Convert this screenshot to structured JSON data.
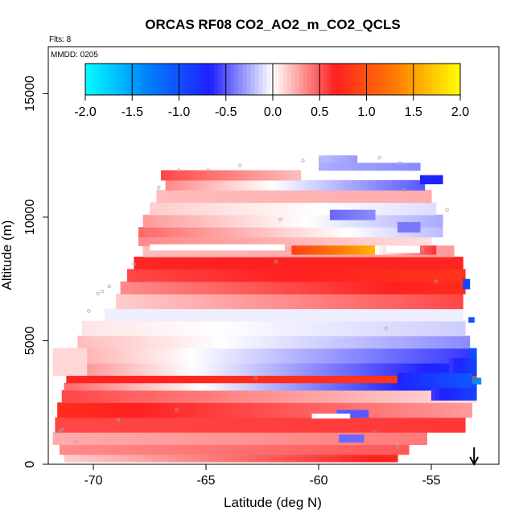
{
  "chart_data": {
    "type": "heatmap",
    "title": "ORCAS RF08 CO2_AO2_m_CO2_QCLS",
    "annotations": {
      "flights": "Flts: 8",
      "date": "MMDD: 0205"
    },
    "xlabel": "Latitude (deg N)",
    "ylabel": "Altitude (m)",
    "xlim": [
      -72,
      -52
    ],
    "ylim": [
      0,
      16900
    ],
    "xticks": [
      -70,
      -65,
      -60,
      -55
    ],
    "xtick_labels": [
      "-70",
      "-65",
      "-60",
      "-55"
    ],
    "yticks": [
      0,
      5000,
      10000,
      15000
    ],
    "ytick_labels": [
      "0",
      "5000",
      "10000",
      "15000"
    ],
    "colorbar": {
      "range": [
        -2.0,
        2.0
      ],
      "ticks": [
        -2.0,
        -1.5,
        -1.0,
        -0.5,
        0.0,
        0.5,
        1.0,
        1.5,
        2.0
      ],
      "tick_labels": [
        "-2.0",
        "-1.5",
        "-1.0",
        "-0.5",
        "0.0",
        "0.5",
        "1.0",
        "1.5",
        "2.0"
      ],
      "colors": [
        "#00ffff",
        "#0080ff",
        "#2020ff",
        "#ffffff",
        "#ff2020",
        "#ff8000",
        "#ffff00"
      ]
    },
    "arrow": {
      "lat": -53.1,
      "direction": "down"
    },
    "bands": [
      {
        "alt_low": 100,
        "alt_high": 400,
        "lat_start": -71.3,
        "lat_end": -56.5,
        "v_start": 0.15,
        "v_end": 0.7
      },
      {
        "alt_low": 400,
        "alt_high": 800,
        "lat_start": -71.5,
        "lat_end": -56.0,
        "v_start": 0.35,
        "v_end": 0.5
      },
      {
        "alt_low": 800,
        "alt_high": 1300,
        "lat_start": -71.8,
        "lat_end": -55.2,
        "v_start": 0.25,
        "v_end": 0.4
      },
      {
        "alt_low": 1300,
        "alt_high": 1900,
        "lat_start": -71.7,
        "lat_end": -53.5,
        "v_start": 0.55,
        "v_end": 0.6
      },
      {
        "alt_low": 1900,
        "alt_high": 2500,
        "lat_start": -71.6,
        "lat_end": -53.2,
        "v_start": 0.75,
        "v_end": 0.3
      },
      {
        "alt_low": 2500,
        "alt_high": 3000,
        "lat_start": -71.4,
        "lat_end": -53.0,
        "v_start": 0.55,
        "v_end": 0.1
      },
      {
        "alt_low": 3000,
        "alt_high": 3300,
        "lat_start": -71.3,
        "lat_end": -53.0,
        "v_start": 0.45,
        "v_end": -0.9
      },
      {
        "alt_low": 3300,
        "alt_high": 3600,
        "lat_start": -71.2,
        "lat_end": -53.0,
        "v_start": 0.65,
        "v_end": 0.85
      },
      {
        "alt_low": 3600,
        "alt_high": 4100,
        "lat_start": -71.1,
        "lat_end": -53.0,
        "v_start": 0.35,
        "v_end": -0.8
      },
      {
        "alt_low": 4100,
        "alt_high": 4700,
        "lat_start": -70.9,
        "lat_end": -53.2,
        "v_start": 0.25,
        "v_end": -0.6
      },
      {
        "alt_low": 4700,
        "alt_high": 5200,
        "lat_start": -70.7,
        "lat_end": -53.3,
        "v_start": 0.2,
        "v_end": -0.35
      },
      {
        "alt_low": 5200,
        "alt_high": 5800,
        "lat_start": -70.5,
        "lat_end": -53.5,
        "v_start": 0.08,
        "v_end": -0.15
      },
      {
        "alt_low": 5800,
        "alt_high": 6300,
        "lat_start": -69.5,
        "lat_end": -53.6,
        "v_start": -0.05,
        "v_end": -0.05
      },
      {
        "alt_low": 6300,
        "alt_high": 6900,
        "lat_start": -69.0,
        "lat_end": -53.6,
        "v_start": 0.15,
        "v_end": 0.55
      },
      {
        "alt_low": 6900,
        "alt_high": 7400,
        "lat_start": -68.8,
        "lat_end": -53.5,
        "v_start": 0.35,
        "v_end": 0.75
      },
      {
        "alt_low": 7400,
        "alt_high": 7900,
        "lat_start": -68.5,
        "lat_end": -53.5,
        "v_start": 0.55,
        "v_end": 0.8
      },
      {
        "alt_low": 7900,
        "alt_high": 8400,
        "lat_start": -68.2,
        "lat_end": -53.6,
        "v_start": 0.65,
        "v_end": 0.7
      },
      {
        "alt_low": 8400,
        "alt_high": 8850,
        "lat_start": -67.8,
        "lat_end": -54.0,
        "v_start": 0.2,
        "v_end": 0.3
      },
      {
        "alt_low": 8850,
        "alt_high": 9200,
        "lat_start": -68.0,
        "lat_end": -55.0,
        "v_start": 0.35,
        "v_end": 0.1
      },
      {
        "alt_low": 9200,
        "alt_high": 9600,
        "lat_start": -68.0,
        "lat_end": -54.5,
        "v_start": 0.45,
        "v_end": -0.2
      },
      {
        "alt_low": 9600,
        "alt_high": 10100,
        "lat_start": -67.8,
        "lat_end": -54.5,
        "v_start": 0.3,
        "v_end": -0.25
      },
      {
        "alt_low": 10100,
        "alt_high": 10600,
        "lat_start": -67.5,
        "lat_end": -54.8,
        "v_start": 0.15,
        "v_end": -0.1
      },
      {
        "alt_low": 10600,
        "alt_high": 11100,
        "lat_start": -67.2,
        "lat_end": -55.0,
        "v_start": 0.2,
        "v_end": 0.25
      },
      {
        "alt_low": 11100,
        "alt_high": 11500,
        "lat_start": -66.8,
        "lat_end": -55.3,
        "v_start": 0.35,
        "v_end": -0.5
      },
      {
        "alt_low": 11500,
        "alt_high": 11900,
        "lat_start": -67.0,
        "lat_end": -60.8,
        "v_start": 0.55,
        "v_end": 0.2
      },
      {
        "alt_low": 11900,
        "alt_high": 12200,
        "lat_start": -60.0,
        "lat_end": -55.5,
        "v_start": -0.25,
        "v_end": -0.35
      }
    ],
    "patches": [
      {
        "lat_start": -61.2,
        "lat_end": -57.5,
        "alt_low": 8500,
        "alt_high": 8850,
        "v_start": 0.9,
        "v_end": 1.6
      },
      {
        "lat_start": -57.5,
        "lat_end": -54.8,
        "alt_low": 8500,
        "alt_high": 8850,
        "v_start": 0.0,
        "v_end": 0.6
      },
      {
        "lat_start": -59.5,
        "lat_end": -57.5,
        "alt_low": 9900,
        "alt_high": 10300,
        "v_start": -0.45,
        "v_end": -0.35
      },
      {
        "lat_start": -56.5,
        "lat_end": -55.5,
        "alt_low": 9400,
        "alt_high": 9800,
        "v_start": -0.4,
        "v_end": -0.4
      },
      {
        "lat_start": -56.5,
        "lat_end": -53.2,
        "alt_low": 3100,
        "alt_high": 3700,
        "v_start": -0.7,
        "v_end": -1.05
      },
      {
        "lat_start": -55.0,
        "lat_end": -53.0,
        "alt_low": 2600,
        "alt_high": 3100,
        "v_start": -0.6,
        "v_end": -0.9
      },
      {
        "lat_start": -54.2,
        "lat_end": -53.0,
        "alt_low": 3700,
        "alt_high": 4300,
        "v_start": -0.6,
        "v_end": -0.9
      },
      {
        "lat_start": -53.3,
        "lat_end": -53.0,
        "alt_low": 4300,
        "alt_high": 4700,
        "v_start": -1.0,
        "v_end": -1.0
      },
      {
        "lat_start": -53.35,
        "lat_end": -53.1,
        "alt_low": 5750,
        "alt_high": 5950,
        "v_start": -1.0,
        "v_end": -1.0
      },
      {
        "lat_start": -53.6,
        "lat_end": -53.3,
        "alt_low": 7100,
        "alt_high": 7500,
        "v_start": -0.95,
        "v_end": -0.95
      },
      {
        "lat_start": -53.15,
        "lat_end": -52.8,
        "alt_low": 3250,
        "alt_high": 3500,
        "v_start": -1.4,
        "v_end": -1.4
      },
      {
        "lat_start": -59.2,
        "lat_end": -57.8,
        "alt_low": 1900,
        "alt_high": 2200,
        "v_start": -0.5,
        "v_end": -0.5
      },
      {
        "lat_start": -59.1,
        "lat_end": -58.0,
        "alt_low": 900,
        "alt_high": 1200,
        "v_start": -0.45,
        "v_end": -0.45
      },
      {
        "lat_start": -60.0,
        "lat_end": -58.3,
        "alt_low": 12200,
        "alt_high": 12500,
        "v_start": -0.2,
        "v_end": -0.3
      },
      {
        "lat_start": -55.5,
        "lat_end": -54.5,
        "alt_low": 11350,
        "alt_high": 11700,
        "v_start": -0.7,
        "v_end": -0.7
      },
      {
        "lat_start": -71.8,
        "lat_end": -70.3,
        "alt_low": 3600,
        "alt_high": 4700,
        "v_start": 0.12,
        "v_end": 0.12
      }
    ],
    "blanks": [
      {
        "lat_start": -67.5,
        "lat_end": -61.5,
        "alt_low": 8650,
        "alt_high": 8900
      },
      {
        "lat_start": -57.0,
        "lat_end": -55.5,
        "alt_low": 8550,
        "alt_high": 8850
      },
      {
        "lat_start": -60.3,
        "lat_end": -58.6,
        "alt_low": 1850,
        "alt_high": 2050
      }
    ],
    "data_points": [
      {
        "lat": -71.4,
        "alt": 1400
      },
      {
        "lat": -71.5,
        "alt": 1300
      },
      {
        "lat": -70.8,
        "alt": 900
      },
      {
        "lat": -70.2,
        "alt": 6200
      },
      {
        "lat": -69.8,
        "alt": 6900
      },
      {
        "lat": -69.6,
        "alt": 7000
      },
      {
        "lat": -69.3,
        "alt": 7200
      },
      {
        "lat": -68.2,
        "alt": 8100
      },
      {
        "lat": -67.6,
        "alt": 9400
      },
      {
        "lat": -67.1,
        "alt": 11200
      },
      {
        "lat": -66.2,
        "alt": 11900
      },
      {
        "lat": -64.9,
        "alt": 11900
      },
      {
        "lat": -63.5,
        "alt": 12100
      },
      {
        "lat": -61.7,
        "alt": 9900
      },
      {
        "lat": -61.9,
        "alt": 8200
      },
      {
        "lat": -60.7,
        "alt": 12300
      },
      {
        "lat": -59.9,
        "alt": 12300
      },
      {
        "lat": -58.6,
        "alt": 12400
      },
      {
        "lat": -57.3,
        "alt": 12400
      },
      {
        "lat": -56.4,
        "alt": 12200
      },
      {
        "lat": -56.2,
        "alt": 11100
      },
      {
        "lat": -54.3,
        "alt": 10300
      },
      {
        "lat": -54.8,
        "alt": 7400
      },
      {
        "lat": -55.4,
        "alt": 8700
      },
      {
        "lat": -56.5,
        "alt": 700
      },
      {
        "lat": -57.5,
        "alt": 1300
      },
      {
        "lat": -64.2,
        "alt": 1000
      },
      {
        "lat": -66.3,
        "alt": 2200
      },
      {
        "lat": -68.9,
        "alt": 1800
      },
      {
        "lat": -62.8,
        "alt": 3500
      },
      {
        "lat": -59.4,
        "alt": 4600
      },
      {
        "lat": -57.0,
        "alt": 5500
      },
      {
        "lat": -70.1,
        "alt": 3900
      }
    ]
  }
}
